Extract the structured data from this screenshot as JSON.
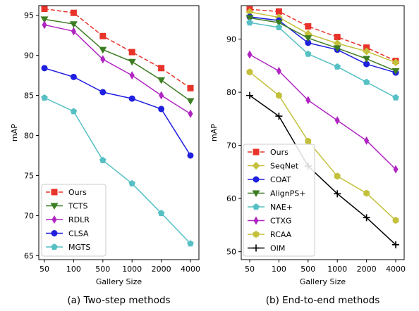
{
  "chart_data": [
    {
      "type": "line",
      "caption": "(a) Two-step methods",
      "xlabel": "Gallery Size",
      "ylabel": "mAP",
      "categories": [
        "50",
        "100",
        "500",
        "1000",
        "2000",
        "4000"
      ],
      "ylim": [
        64.5,
        96.2
      ],
      "yticks": [
        65,
        70,
        75,
        80,
        85,
        90,
        95
      ],
      "grid": false,
      "legend_position": "bottom-left",
      "series": [
        {
          "name": "Ours",
          "color": "#e8332a",
          "marker": "square",
          "dashed": true,
          "values": [
            95.8,
            95.3,
            92.4,
            90.4,
            88.4,
            85.9
          ]
        },
        {
          "name": "TCTS",
          "color": "#3c7d22",
          "marker": "triangle-down",
          "dashed": false,
          "values": [
            94.5,
            93.9,
            90.7,
            89.2,
            86.9,
            84.3
          ]
        },
        {
          "name": "RDLR",
          "color": "#b024c2",
          "marker": "thin-diamond",
          "dashed": false,
          "values": [
            93.8,
            93.0,
            89.5,
            87.5,
            85.0,
            82.7
          ]
        },
        {
          "name": "CLSA",
          "color": "#1f1fe0",
          "marker": "circle",
          "dashed": false,
          "values": [
            88.4,
            87.3,
            85.4,
            84.6,
            83.3,
            77.5
          ]
        },
        {
          "name": "MGTS",
          "color": "#56c0c4",
          "marker": "pentagon",
          "dashed": false,
          "values": [
            84.7,
            83.0,
            76.9,
            74.0,
            70.3,
            66.5
          ]
        }
      ]
    },
    {
      "type": "line",
      "caption": "(b) End-to-end methods",
      "xlabel": "Gallery Size",
      "ylabel": "mAP",
      "categories": [
        "50",
        "100",
        "500",
        "1000",
        "2000",
        "4000"
      ],
      "ylim": [
        48.5,
        96.3
      ],
      "yticks": [
        50,
        60,
        70,
        80,
        90
      ],
      "grid": false,
      "legend_position": "bottom-left",
      "series": [
        {
          "name": "Ours",
          "color": "#e8332a",
          "marker": "square",
          "dashed": true,
          "values": [
            95.6,
            95.2,
            92.4,
            90.4,
            88.4,
            85.9
          ]
        },
        {
          "name": "SeqNet",
          "color": "#c3c03b",
          "marker": "diamond",
          "dashed": false,
          "values": [
            95.1,
            94.1,
            91.0,
            89.2,
            87.7,
            85.6
          ]
        },
        {
          "name": "COAT",
          "color": "#1f1fe0",
          "marker": "circle",
          "dashed": false,
          "values": [
            94.2,
            93.5,
            89.3,
            88.0,
            85.3,
            83.7
          ]
        },
        {
          "name": "AlignPS+",
          "color": "#3c7d22",
          "marker": "triangle-down",
          "dashed": false,
          "values": [
            94.0,
            93.1,
            90.2,
            88.3,
            86.3,
            84.0
          ]
        },
        {
          "name": "NAE+",
          "color": "#56c0c4",
          "marker": "pentagon",
          "dashed": false,
          "values": [
            93.1,
            92.2,
            87.2,
            84.8,
            81.9,
            79.0
          ]
        },
        {
          "name": "CTXG",
          "color": "#b024c2",
          "marker": "thin-diamond",
          "dashed": false,
          "values": [
            87.1,
            84.0,
            78.5,
            74.7,
            70.9,
            65.5
          ]
        },
        {
          "name": "RCAA",
          "color": "#c3c03b",
          "marker": "hexagon",
          "dashed": false,
          "values": [
            83.8,
            79.4,
            70.8,
            64.2,
            61.0,
            55.9
          ]
        },
        {
          "name": "OIM",
          "color": "#000000",
          "marker": "plus",
          "dashed": false,
          "values": [
            79.4,
            75.5,
            66.1,
            60.9,
            56.4,
            51.3
          ]
        }
      ]
    }
  ]
}
